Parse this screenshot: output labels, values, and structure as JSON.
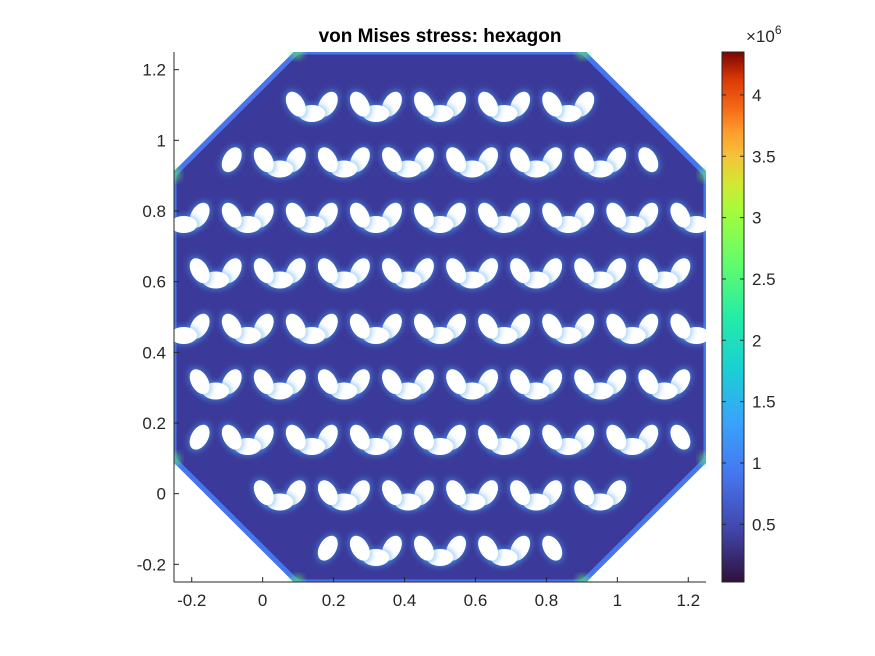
{
  "chart_data": {
    "type": "heatmap",
    "title": "von Mises stress: hexagon",
    "xlabel": "",
    "ylabel": "",
    "xlim": [
      -0.25,
      1.25
    ],
    "ylim": [
      -0.25,
      1.25
    ],
    "x_ticks": [
      -0.2,
      0,
      0.2,
      0.4,
      0.6,
      0.8,
      1,
      1.2
    ],
    "y_ticks": [
      -0.2,
      0,
      0.2,
      0.4,
      0.6,
      0.8,
      1,
      1.2
    ],
    "x_tick_labels": [
      "-0.2",
      "0",
      "0.2",
      "0.4",
      "0.6",
      "0.8",
      "1",
      "1.2"
    ],
    "y_tick_labels": [
      "-0.2",
      "0",
      "0.2",
      "0.4",
      "0.6",
      "0.8",
      "1",
      "1.2"
    ],
    "colorbar": {
      "colormap": "turbo",
      "range": [
        30000,
        4350000
      ],
      "exponent_label": "×10",
      "exponent_power": "6",
      "ticks": [
        0.5,
        1,
        1.5,
        2,
        2.5,
        3,
        3.5,
        4
      ],
      "tick_labels": [
        "0.5",
        "1",
        "1.5",
        "2",
        "2.5",
        "3",
        "3.5",
        "4"
      ],
      "location": "right"
    },
    "domain_shape": "octagonal lattice with elliptical holes",
    "background_color": "#30123b",
    "hole_color": "#ffffff",
    "grid": false
  }
}
